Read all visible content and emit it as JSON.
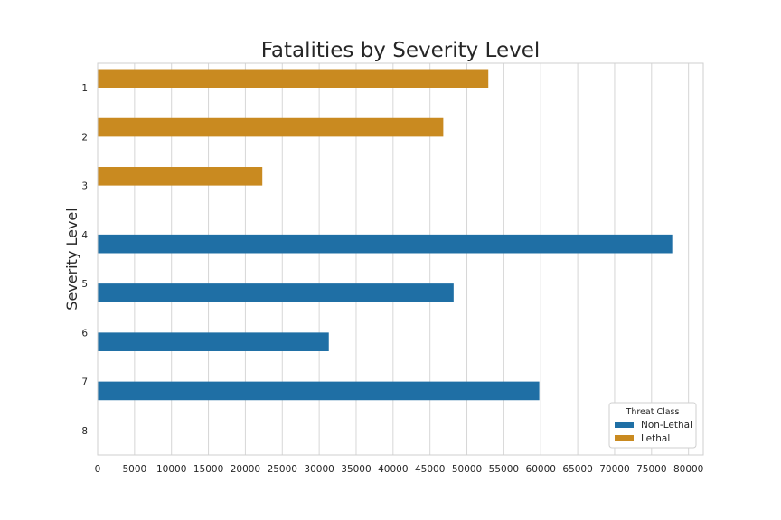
{
  "chart_data": {
    "type": "bar",
    "orientation": "horizontal",
    "title": "Fatalities by Severity Level",
    "xlabel": "",
    "ylabel": "Severity Level",
    "xlim": [
      0,
      82000
    ],
    "xticks": [
      0,
      5000,
      10000,
      15000,
      20000,
      25000,
      30000,
      35000,
      40000,
      45000,
      50000,
      55000,
      60000,
      65000,
      70000,
      75000,
      80000
    ],
    "categories": [
      "1",
      "2",
      "3",
      "4",
      "5",
      "6",
      "7",
      "8"
    ],
    "grid": "vertical",
    "legend": {
      "title": "Threat Class",
      "placement": "lower-right",
      "entries": [
        {
          "name": "Non-Lethal",
          "color": "#1f6fa5"
        },
        {
          "name": "Lethal",
          "color": "#c98a20"
        }
      ]
    },
    "series": [
      {
        "name": "Non-Lethal",
        "color": "#1f6fa5",
        "values": [
          null,
          null,
          null,
          77800,
          48200,
          31300,
          59800,
          null
        ]
      },
      {
        "name": "Lethal",
        "color": "#c98a20",
        "values": [
          52900,
          46800,
          22300,
          null,
          null,
          null,
          null,
          null
        ]
      }
    ]
  }
}
